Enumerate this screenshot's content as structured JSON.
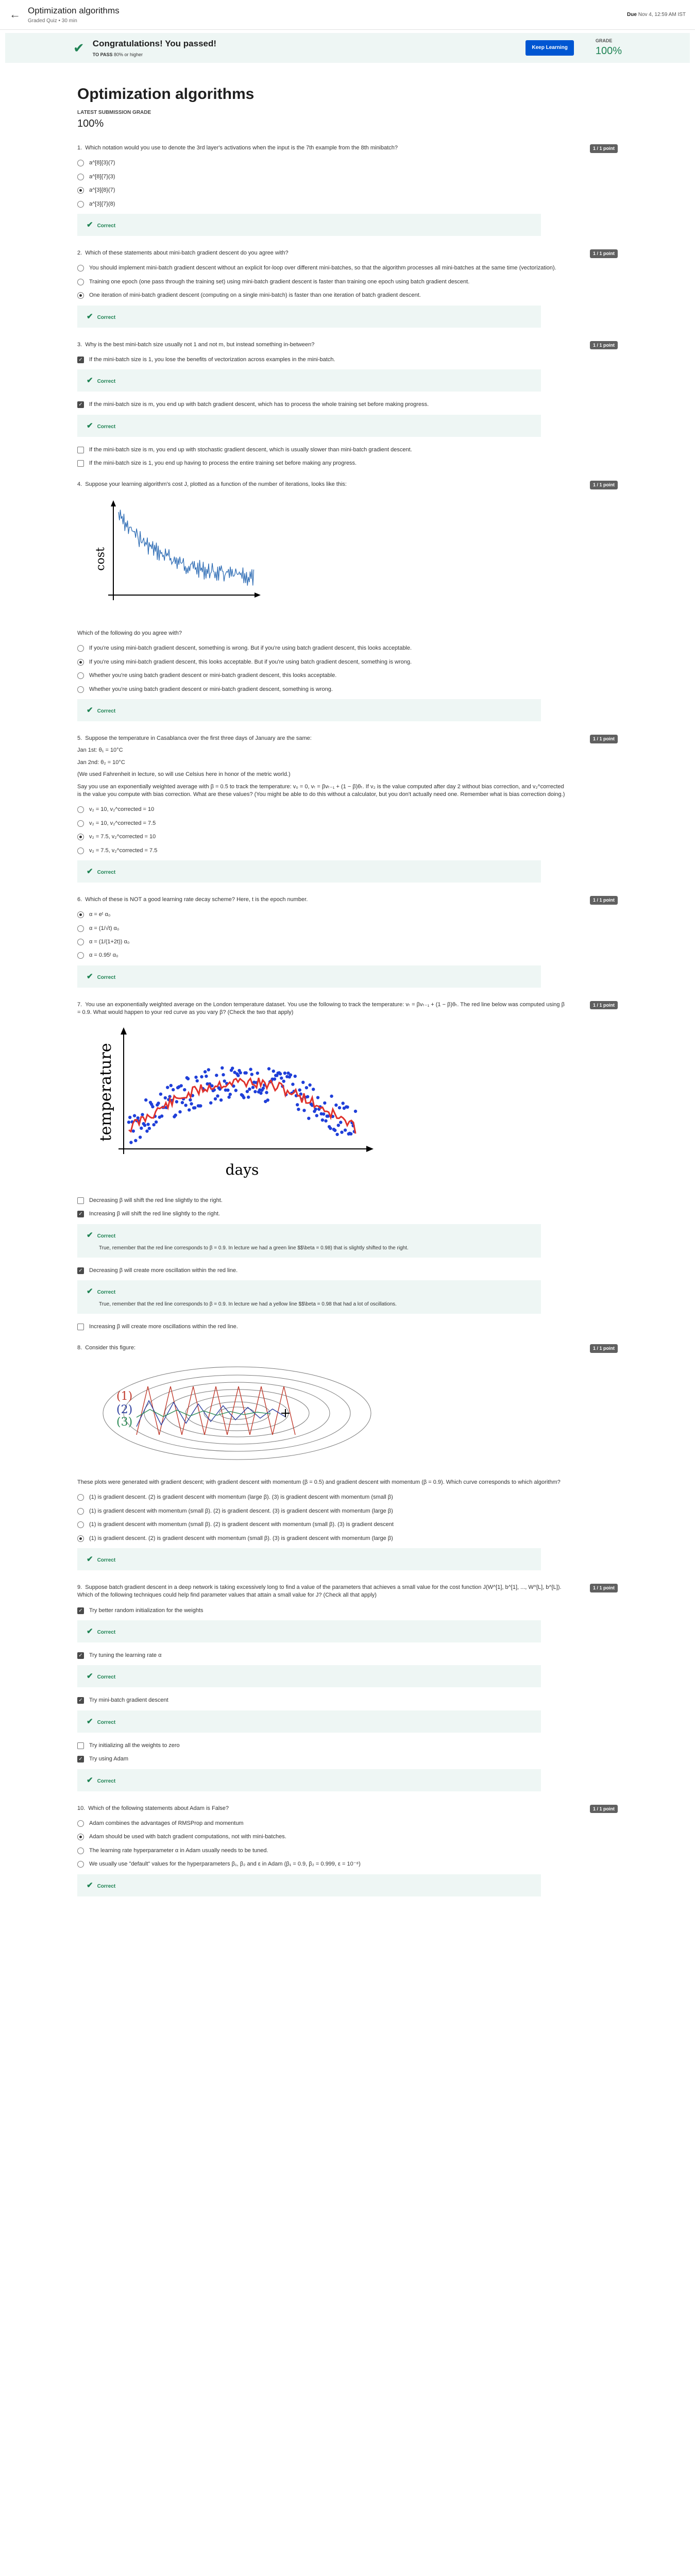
{
  "header": {
    "title": "Optimization algorithms",
    "subtitle": "Graded Quiz • 30 min",
    "due_label": "Due",
    "due_value": "Nov 4, 12:59 AM IST"
  },
  "banner": {
    "title": "Congratulations! You passed!",
    "pass_label": "TO PASS",
    "pass_value": "80% or higher",
    "keep_learning": "Keep Learning",
    "grade_label": "GRADE",
    "grade_value": "100%"
  },
  "quiz": {
    "title": "Optimization algorithms",
    "latest_label": "LATEST SUBMISSION GRADE",
    "latest_value": "100%"
  },
  "correct_label": "Correct",
  "questions": [
    {
      "num": "1.",
      "text": "Which notation would you use to denote the 3rd layer's activations when the input is the 7th example from the 8th minibatch?",
      "points": "1 / 1 point",
      "options": [
        "a^[8]{3}(7)",
        "a^[8]{7}(3)",
        "a^[3]{8}(7)",
        "a^[3]{7}(8)"
      ],
      "selected": 2
    },
    {
      "num": "2.",
      "text": "Which of these statements about mini-batch gradient descent do you agree with?",
      "points": "1 / 1 point",
      "options": [
        "You should implement mini-batch gradient descent without an explicit for-loop over different mini-batches, so that the algorithm processes all mini-batches at the same time (vectorization).",
        "Training one epoch (one pass through the training set) using mini-batch gradient descent is faster than training one epoch using batch gradient descent.",
        "One iteration of mini-batch gradient descent (computing on a single mini-batch) is faster than one iteration of batch gradient descent."
      ],
      "selected": 2
    },
    {
      "num": "3.",
      "text": "Why is the best mini-batch size usually not 1 and not m, but instead something in-between?",
      "points": "1 / 1 point",
      "checks": [
        {
          "text": "If the mini-batch size is 1, you lose the benefits of vectorization across examples in the mini-batch.",
          "checked": true
        },
        {
          "text": "If the mini-batch size is m, you end up with batch gradient descent, which has to process the whole training set before making progress.",
          "checked": true
        },
        {
          "text": "If the mini-batch size is m, you end up with stochastic gradient descent, which is usually slower than mini-batch gradient descent.",
          "checked": false
        },
        {
          "text": "If the mini-batch size is 1, you end up having to process the entire training set before making any progress.",
          "checked": false
        }
      ]
    },
    {
      "num": "4.",
      "text": "Suppose your learning algorithm's cost J, plotted as a function of the number of iterations, looks like this:",
      "points": "1 / 1 point",
      "followup": "Which of the following do you agree with?",
      "plot_ylabel": "cost",
      "options": [
        "If you're using mini-batch gradient descent, something is wrong. But if you're using batch gradient descent, this looks acceptable.",
        "If you're using mini-batch gradient descent, this looks acceptable. But if you're using batch gradient descent, something is wrong.",
        "Whether you're using batch gradient descent or mini-batch gradient descent, this looks acceptable.",
        "Whether you're using batch gradient descent or mini-batch gradient descent, something is wrong."
      ],
      "selected": 1
    },
    {
      "num": "5.",
      "text": "Suppose the temperature in Casablanca over the first three days of January are the same:",
      "points": "1 / 1 point",
      "lines": [
        "Jan 1st: θ₁ = 10°C",
        "Jan 2nd: θ₂ = 10°C",
        "(We used Fahrenheit in lecture, so will use Celsius here in honor of the metric world.)",
        "Say you use an exponentially weighted average with β = 0.5 to track the temperature: v₀ = 0, vₜ = βvₜ₋₁ + (1 − β)θₜ. If v₂ is the value computed after day 2 without bias correction, and v₂^corrected is the value you compute with bias correction. What are these values? (You might be able to do this without a calculator, but you don't actually need one. Remember what is bias correction doing.)"
      ],
      "options": [
        "v₂ = 10, v₂^corrected = 10",
        "v₂ = 10, v₂^corrected = 7.5",
        "v₂ = 7.5, v₂^corrected = 10",
        "v₂ = 7.5, v₂^corrected = 7.5"
      ],
      "selected": 2
    },
    {
      "num": "6.",
      "text": "Which of these is NOT a good learning rate decay scheme? Here, t is the epoch number.",
      "points": "1 / 1 point",
      "options": [
        "α = eᵗ α₀",
        "α = (1/√t) α₀",
        "α = (1/(1+2t)) α₀",
        "α = 0.95ᵗ α₀"
      ],
      "selected": 0
    },
    {
      "num": "7.",
      "text": "You use an exponentially weighted average on the London temperature dataset. You use the following to track the temperature: vₜ = βvₜ₋₁ + (1 − β)θₜ. The red line below was computed using β = 0.9. What would happen to your red curve as you vary β? (Check the two that apply)",
      "points": "1 / 1 point",
      "plot_ylabel": "temperature",
      "plot_xlabel": "days",
      "checks": [
        {
          "text": "Decreasing β will shift the red line slightly to the right.",
          "checked": false
        },
        {
          "text": "Increasing β will shift the red line slightly to the right.",
          "checked": true,
          "expl": "True, remember that the red line corresponds to β = 0.9. In lecture we had a green line $$\\beta = 0.98) that is slightly shifted to the right."
        },
        {
          "text": "Decreasing β will create more oscillation within the red line.",
          "checked": true,
          "expl": "True, remember that the red line corresponds to β = 0.9. In lecture we had a yellow line $$\\beta = 0.98 that had a lot of oscillations."
        },
        {
          "text": "Increasing β will create more oscillations within the red line.",
          "checked": false
        }
      ]
    },
    {
      "num": "8.",
      "text": "Consider this figure:",
      "points": "1 / 1 point",
      "fig_labels": [
        "(1)",
        "(2)",
        "(3)"
      ],
      "followup": "These plots were generated with gradient descent; with gradient descent with momentum (β = 0.5) and gradient descent with momentum (β = 0.9). Which curve corresponds to which algorithm?",
      "options": [
        "(1) is gradient descent. (2) is gradient descent with momentum (large β). (3) is gradient descent with momentum (small β)",
        "(1) is gradient descent with momentum (small β). (2) is gradient descent. (3) is gradient descent with momentum (large β)",
        "(1) is gradient descent with momentum (small β). (2) is gradient descent with momentum (small β). (3) is gradient descent",
        "(1) is gradient descent. (2) is gradient descent with momentum (small β). (3) is gradient descent with momentum (large β)"
      ],
      "selected": 3
    },
    {
      "num": "9.",
      "text": "Suppose batch gradient descent in a deep network is taking excessively long to find a value of the parameters that achieves a small value for the cost function J(W^[1], b^[1], ..., W^[L], b^[L]). Which of the following techniques could help find parameter values that attain a small value for J? (Check all that apply)",
      "points": "1 / 1 point",
      "checks": [
        {
          "text": "Try better random initialization for the weights",
          "checked": true,
          "correct": true
        },
        {
          "text": "Try tuning the learning rate α",
          "checked": true,
          "correct": true
        },
        {
          "text": "Try mini-batch gradient descent",
          "checked": true,
          "correct": true
        },
        {
          "text": "Try initializing all the weights to zero",
          "checked": false
        },
        {
          "text": "Try using Adam",
          "checked": true,
          "correct": true
        }
      ]
    },
    {
      "num": "10.",
      "text": "Which of the following statements about Adam is False?",
      "points": "1 / 1 point",
      "options": [
        "Adam combines the advantages of RMSProp and momentum",
        "Adam should be used with batch gradient computations, not with mini-batches.",
        "The learning rate hyperparameter α in Adam usually needs to be tuned.",
        "We usually use \"default\" values for the hyperparameters β₁, β₂ and ε in Adam (β₁ = 0.9, β₂ = 0.999, ε = 10⁻⁸)"
      ],
      "selected": 1
    }
  ]
}
